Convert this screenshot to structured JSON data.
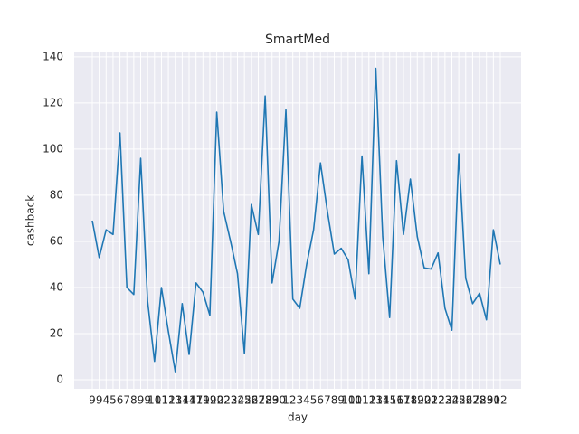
{
  "chart_data": {
    "type": "line",
    "title": "SmartMed",
    "xlabel": "day",
    "ylabel": "cashback",
    "categories": [
      "9",
      "9",
      "4",
      "5",
      "6",
      "7",
      "8",
      "9",
      "9",
      "10",
      "11",
      "12",
      "13",
      "14",
      "14",
      "17",
      "19",
      "19",
      "20",
      "22",
      "23",
      "24",
      "25",
      "26",
      "27",
      "28",
      "29",
      "30",
      "1",
      "2",
      "3",
      "4",
      "5",
      "6",
      "7",
      "8",
      "9",
      "10",
      "10",
      "11",
      "12",
      "13",
      "14",
      "15",
      "16",
      "17",
      "18",
      "19",
      "20",
      "21",
      "22",
      "23",
      "24",
      "25",
      "26",
      "27",
      "28",
      "29",
      "30",
      "12"
    ],
    "series": [
      {
        "name": "cashback",
        "color": "#1f77b4",
        "values": [
          69,
          53,
          65,
          63,
          107,
          40,
          37,
          96,
          34,
          8,
          40,
          21,
          3.5,
          33,
          11,
          42,
          38,
          28,
          116,
          73,
          60,
          46,
          11.5,
          76,
          63,
          123,
          42,
          60,
          117,
          35,
          31,
          50,
          65,
          94,
          73,
          54.5,
          57,
          52,
          35,
          97,
          46,
          135,
          62,
          27,
          95,
          63,
          87,
          62,
          48.5,
          48,
          55,
          31,
          21.5,
          98,
          44,
          33,
          37.5,
          26,
          65,
          50
        ]
      }
    ],
    "ylim": [
      -3.9,
      141.9
    ],
    "yticks": [
      0,
      20,
      40,
      60,
      80,
      100,
      120,
      140
    ],
    "grid": true
  }
}
